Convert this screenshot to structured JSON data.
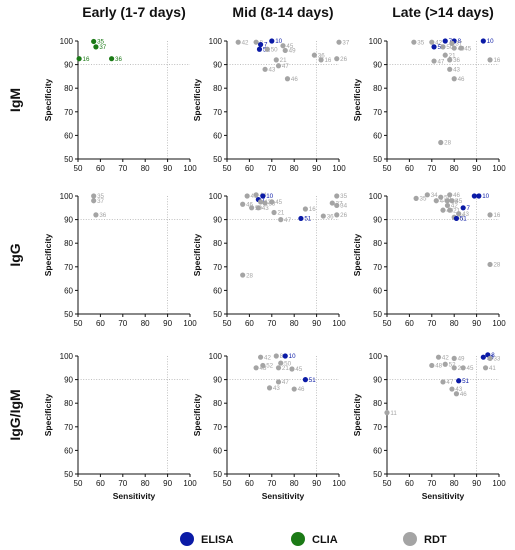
{
  "colors": {
    "ELISA": "#0a1aa6",
    "CLIA": "#1b7a16",
    "RDT": "#a4a4a4"
  },
  "chart_data": {
    "type": "scatter",
    "columns": [
      "Early (1-7 days)",
      "Mid (8-14 days)",
      "Late (>14 days)"
    ],
    "rows": [
      "IgM",
      "IgG",
      "IgG/IgM"
    ],
    "xlabel": "Sensitivity",
    "ylabel": "Specificity",
    "xlim": [
      50,
      100
    ],
    "ylim": [
      50,
      100
    ],
    "xticks": [
      "50",
      "60",
      "70",
      "80",
      "90",
      "100"
    ],
    "yticks": [
      "50",
      "60",
      "70",
      "80",
      "90",
      "100"
    ],
    "reference_lines": {
      "x": 90,
      "y": 90
    },
    "legend": [
      "ELISA",
      "CLIA",
      "RDT"
    ],
    "panels": [
      {
        "row": 0,
        "col": 0,
        "points": [
          {
            "x": 57,
            "y": 99.8,
            "label": "35",
            "t": "CLIA"
          },
          {
            "x": 58,
            "y": 97.5,
            "label": "37",
            "t": "CLIA"
          },
          {
            "x": 50.5,
            "y": 92.5,
            "label": "16",
            "t": "CLIA"
          },
          {
            "x": 65,
            "y": 92.5,
            "label": "36",
            "t": "CLIA"
          }
        ]
      },
      {
        "row": 0,
        "col": 1,
        "points": [
          {
            "x": 55,
            "y": 99.5,
            "label": "42",
            "t": "RDT"
          },
          {
            "x": 63,
            "y": 99.5,
            "label": "8",
            "t": "RDT"
          },
          {
            "x": 70,
            "y": 100,
            "label": "10",
            "t": "ELISA"
          },
          {
            "x": 65,
            "y": 98.5,
            "label": "7",
            "t": "ELISA"
          },
          {
            "x": 64.5,
            "y": 96.5,
            "label": "51",
            "t": "ELISA"
          },
          {
            "x": 68,
            "y": 96.5,
            "label": "50",
            "t": "RDT"
          },
          {
            "x": 75,
            "y": 98,
            "label": "45",
            "t": "RDT"
          },
          {
            "x": 76,
            "y": 96,
            "label": "49",
            "t": "RDT"
          },
          {
            "x": 72,
            "y": 92,
            "label": "21",
            "t": "RDT"
          },
          {
            "x": 73,
            "y": 89.5,
            "label": "47",
            "t": "RDT"
          },
          {
            "x": 67,
            "y": 88,
            "label": "43",
            "t": "RDT"
          },
          {
            "x": 77,
            "y": 84,
            "label": "46",
            "t": "RDT"
          },
          {
            "x": 89,
            "y": 94,
            "label": "36",
            "t": "RDT"
          },
          {
            "x": 92,
            "y": 92,
            "label": "16",
            "t": "RDT"
          },
          {
            "x": 100,
            "y": 99.5,
            "label": "37",
            "t": "RDT"
          },
          {
            "x": 99,
            "y": 92.5,
            "label": "26",
            "t": "RDT"
          }
        ]
      },
      {
        "row": 0,
        "col": 2,
        "points": [
          {
            "x": 62,
            "y": 99.5,
            "label": "35",
            "t": "RDT"
          },
          {
            "x": 70,
            "y": 99.5,
            "label": "42",
            "t": "RDT"
          },
          {
            "x": 76,
            "y": 100,
            "label": "7",
            "t": "ELISA"
          },
          {
            "x": 80,
            "y": 100,
            "label": "8",
            "t": "ELISA"
          },
          {
            "x": 93,
            "y": 100,
            "label": "10",
            "t": "ELISA"
          },
          {
            "x": 71,
            "y": 97.5,
            "label": "51",
            "t": "ELISA"
          },
          {
            "x": 75,
            "y": 97.5,
            "label": "50",
            "t": "RDT"
          },
          {
            "x": 79,
            "y": 99,
            "label": "37",
            "t": "RDT"
          },
          {
            "x": 80,
            "y": 97,
            "label": "49",
            "t": "RDT"
          },
          {
            "x": 83,
            "y": 97,
            "label": "45",
            "t": "RDT"
          },
          {
            "x": 76,
            "y": 94,
            "label": "21",
            "t": "RDT"
          },
          {
            "x": 78,
            "y": 92,
            "label": "36",
            "t": "RDT"
          },
          {
            "x": 71,
            "y": 91.5,
            "label": "47",
            "t": "RDT"
          },
          {
            "x": 78,
            "y": 88,
            "label": "43",
            "t": "RDT"
          },
          {
            "x": 80,
            "y": 84,
            "label": "46",
            "t": "RDT"
          },
          {
            "x": 96,
            "y": 92,
            "label": "16",
            "t": "RDT"
          },
          {
            "x": 74,
            "y": 57,
            "label": "28",
            "t": "RDT"
          }
        ]
      },
      {
        "row": 1,
        "col": 0,
        "points": [
          {
            "x": 57,
            "y": 100,
            "label": "35",
            "t": "RDT"
          },
          {
            "x": 57,
            "y": 98,
            "label": "37",
            "t": "RDT"
          },
          {
            "x": 58,
            "y": 92,
            "label": "36",
            "t": "RDT"
          }
        ]
      },
      {
        "row": 1,
        "col": 1,
        "points": [
          {
            "x": 59,
            "y": 100,
            "label": "49",
            "t": "RDT"
          },
          {
            "x": 63,
            "y": 100.5,
            "label": "44",
            "t": "RDT"
          },
          {
            "x": 66,
            "y": 100,
            "label": "10",
            "t": "ELISA"
          },
          {
            "x": 64,
            "y": 98.5,
            "label": "7",
            "t": "ELISA"
          },
          {
            "x": 65,
            "y": 97.5,
            "label": "42",
            "t": "RDT"
          },
          {
            "x": 57,
            "y": 96.5,
            "label": "46",
            "t": "RDT"
          },
          {
            "x": 61,
            "y": 95,
            "label": "50",
            "t": "RDT"
          },
          {
            "x": 64,
            "y": 95,
            "label": "43",
            "t": "RDT"
          },
          {
            "x": 70,
            "y": 97.5,
            "label": "45",
            "t": "RDT"
          },
          {
            "x": 67,
            "y": 97,
            "label": "38",
            "t": "RDT"
          },
          {
            "x": 71,
            "y": 93,
            "label": "21",
            "t": "RDT"
          },
          {
            "x": 74,
            "y": 90,
            "label": "47",
            "t": "RDT"
          },
          {
            "x": 83,
            "y": 90.5,
            "label": "51",
            "t": "ELISA"
          },
          {
            "x": 85,
            "y": 94.5,
            "label": "16",
            "t": "RDT"
          },
          {
            "x": 93,
            "y": 91.5,
            "label": "36",
            "t": "RDT"
          },
          {
            "x": 97,
            "y": 97,
            "label": "37",
            "t": "RDT"
          },
          {
            "x": 99,
            "y": 100,
            "label": "35",
            "t": "RDT"
          },
          {
            "x": 99,
            "y": 96,
            "label": "34",
            "t": "RDT"
          },
          {
            "x": 99,
            "y": 92,
            "label": "26",
            "t": "RDT"
          },
          {
            "x": 57,
            "y": 66.5,
            "label": "28",
            "t": "RDT"
          }
        ]
      },
      {
        "row": 1,
        "col": 2,
        "points": [
          {
            "x": 63,
            "y": 99,
            "label": "35",
            "t": "RDT"
          },
          {
            "x": 68,
            "y": 100.5,
            "label": "34",
            "t": "RDT"
          },
          {
            "x": 74,
            "y": 99.5,
            "label": "50",
            "t": "RDT"
          },
          {
            "x": 78,
            "y": 100.5,
            "label": "46",
            "t": "RDT"
          },
          {
            "x": 72,
            "y": 98,
            "label": "44",
            "t": "RDT"
          },
          {
            "x": 77,
            "y": 98,
            "label": "38",
            "t": "RDT"
          },
          {
            "x": 79,
            "y": 98,
            "label": "45",
            "t": "RDT"
          },
          {
            "x": 77,
            "y": 96,
            "label": "42",
            "t": "RDT"
          },
          {
            "x": 75,
            "y": 94,
            "label": "49",
            "t": "RDT"
          },
          {
            "x": 78,
            "y": 94,
            "label": "21",
            "t": "RDT"
          },
          {
            "x": 80,
            "y": 91,
            "label": "47",
            "t": "RDT"
          },
          {
            "x": 82,
            "y": 92.5,
            "label": "43",
            "t": "RDT"
          },
          {
            "x": 84,
            "y": 95,
            "label": "7",
            "t": "ELISA"
          },
          {
            "x": 81,
            "y": 90.5,
            "label": "51",
            "t": "ELISA"
          },
          {
            "x": 89,
            "y": 100,
            "label": "8",
            "t": "ELISA"
          },
          {
            "x": 91,
            "y": 100,
            "label": "10",
            "t": "ELISA"
          },
          {
            "x": 96,
            "y": 92,
            "label": "16",
            "t": "RDT"
          },
          {
            "x": 96,
            "y": 71,
            "label": "28",
            "t": "RDT"
          }
        ]
      },
      {
        "row": 2,
        "col": 0,
        "points": []
      },
      {
        "row": 2,
        "col": 1,
        "points": [
          {
            "x": 65,
            "y": 99.5,
            "label": "42",
            "t": "RDT"
          },
          {
            "x": 72,
            "y": 100,
            "label": "8",
            "t": "RDT"
          },
          {
            "x": 76,
            "y": 100,
            "label": "10",
            "t": "ELISA"
          },
          {
            "x": 74,
            "y": 97,
            "label": "50",
            "t": "RDT"
          },
          {
            "x": 66,
            "y": 96,
            "label": "52",
            "t": "RDT"
          },
          {
            "x": 63,
            "y": 95,
            "label": "48",
            "t": "RDT"
          },
          {
            "x": 73,
            "y": 95,
            "label": "21",
            "t": "RDT"
          },
          {
            "x": 79,
            "y": 94.5,
            "label": "45",
            "t": "RDT"
          },
          {
            "x": 85,
            "y": 90,
            "label": "51",
            "t": "ELISA"
          },
          {
            "x": 73,
            "y": 89,
            "label": "47",
            "t": "RDT"
          },
          {
            "x": 69,
            "y": 86.5,
            "label": "43",
            "t": "RDT"
          },
          {
            "x": 80,
            "y": 86,
            "label": "46",
            "t": "RDT"
          }
        ]
      },
      {
        "row": 2,
        "col": 2,
        "points": [
          {
            "x": 73,
            "y": 99.5,
            "label": "42",
            "t": "RDT"
          },
          {
            "x": 80,
            "y": 99,
            "label": "49",
            "t": "RDT"
          },
          {
            "x": 70,
            "y": 96,
            "label": "48",
            "t": "RDT"
          },
          {
            "x": 76,
            "y": 96.5,
            "label": "52",
            "t": "RDT"
          },
          {
            "x": 80,
            "y": 95,
            "label": "21",
            "t": "RDT"
          },
          {
            "x": 84,
            "y": 95,
            "label": "45",
            "t": "RDT"
          },
          {
            "x": 93,
            "y": 99.5,
            "label": "10",
            "t": "ELISA"
          },
          {
            "x": 95,
            "y": 100.5,
            "label": "8",
            "t": "ELISA"
          },
          {
            "x": 96,
            "y": 99,
            "label": "33",
            "t": "RDT"
          },
          {
            "x": 94,
            "y": 95,
            "label": "41",
            "t": "RDT"
          },
          {
            "x": 82,
            "y": 89.5,
            "label": "51",
            "t": "ELISA"
          },
          {
            "x": 75,
            "y": 89,
            "label": "47",
            "t": "RDT"
          },
          {
            "x": 79,
            "y": 86,
            "label": "43",
            "t": "RDT"
          },
          {
            "x": 81,
            "y": 84,
            "label": "46",
            "t": "RDT"
          },
          {
            "x": 50,
            "y": 76,
            "label": "11",
            "t": "RDT"
          }
        ]
      }
    ]
  }
}
